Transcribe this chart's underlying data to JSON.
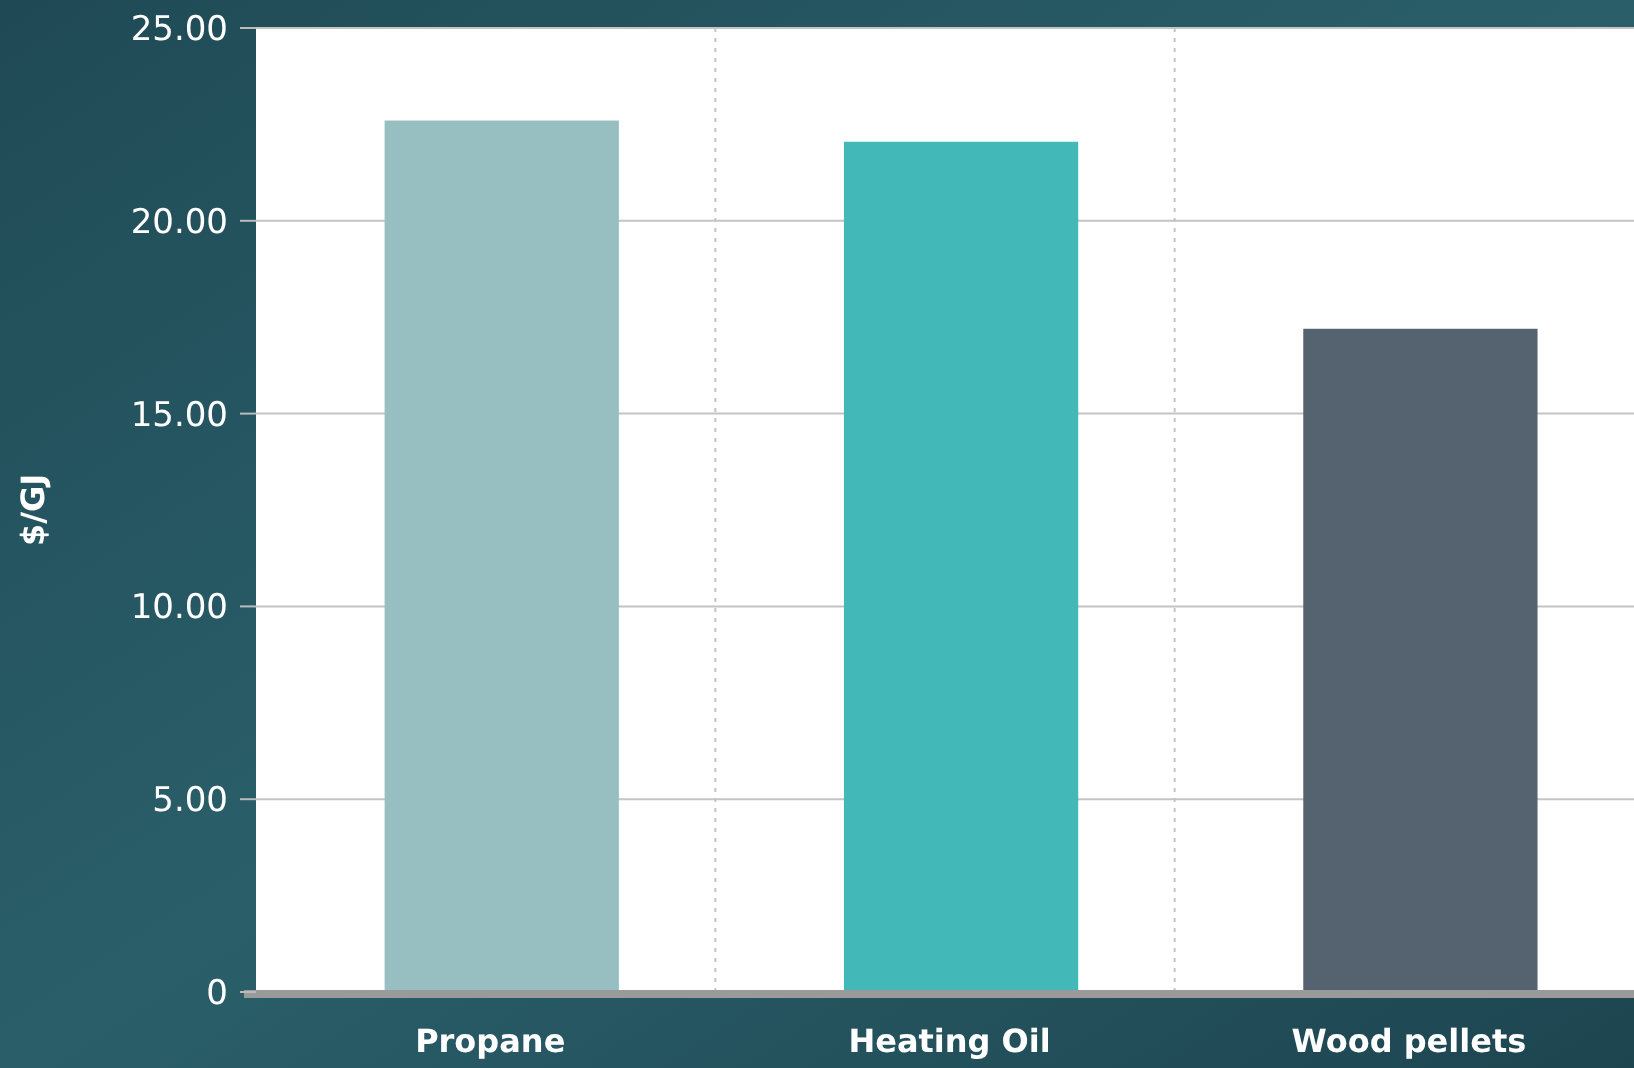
{
  "chart_data": {
    "type": "bar",
    "ylabel": "$/GJ",
    "categories": [
      "Propane",
      "Heating Oil",
      "Wood pellets"
    ],
    "values": [
      22.6,
      22.05,
      17.2
    ],
    "colors": [
      "#97bfc1",
      "#42b8b8",
      "#556270"
    ],
    "ylim": [
      0,
      25
    ],
    "yticks": [
      0,
      {
        "value": 5,
        "label": "5.00"
      },
      {
        "value": 10,
        "label": "10.00"
      },
      {
        "value": 15,
        "label": "15.00"
      },
      {
        "value": 20,
        "label": "20.00"
      },
      {
        "value": 25,
        "label": "25.00"
      }
    ],
    "grid": "y"
  }
}
